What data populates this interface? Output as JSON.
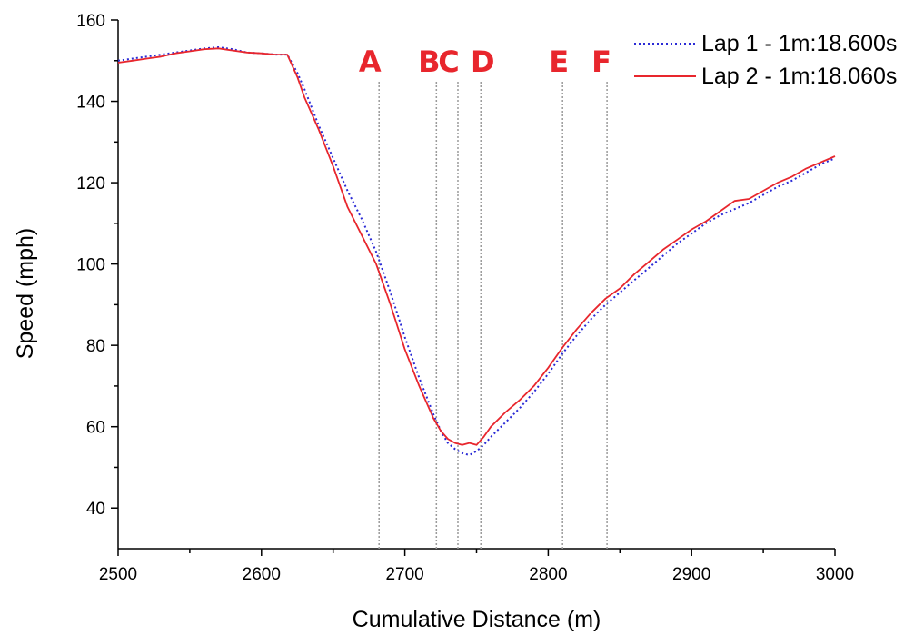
{
  "chart_data": {
    "type": "line",
    "xlabel": "Cumulative Distance (m)",
    "ylabel": "Speed (mph)",
    "xlim": [
      2500,
      3000
    ],
    "ylim": [
      30,
      160
    ],
    "x_ticks": [
      2500,
      2600,
      2700,
      2800,
      2900,
      3000
    ],
    "y_ticks": [
      40,
      60,
      80,
      100,
      120,
      140,
      160
    ],
    "grid": false,
    "legend_position": "top-right",
    "series": [
      {
        "name": "Lap 1 - 1m:18.600s",
        "color": "#2a2ad6",
        "style": "dotted",
        "x": [
          2500,
          2510,
          2520,
          2530,
          2540,
          2550,
          2560,
          2570,
          2580,
          2590,
          2600,
          2610,
          2618,
          2625,
          2630,
          2640,
          2650,
          2660,
          2670,
          2680,
          2690,
          2700,
          2710,
          2720,
          2725,
          2730,
          2735,
          2740,
          2745,
          2750,
          2755,
          2760,
          2770,
          2780,
          2790,
          2800,
          2810,
          2820,
          2830,
          2840,
          2850,
          2860,
          2870,
          2880,
          2890,
          2900,
          2910,
          2920,
          2930,
          2940,
          2950,
          2960,
          2970,
          2980,
          2990,
          3000
        ],
        "y": [
          150,
          150.5,
          151,
          151.5,
          152,
          152.5,
          153,
          153.3,
          152.8,
          152,
          151.8,
          151.5,
          151.5,
          147,
          143,
          134,
          126,
          118,
          111,
          103,
          93,
          82,
          72,
          63,
          59,
          56,
          54.5,
          53.5,
          53,
          54,
          55.5,
          57.5,
          61,
          64.5,
          68.5,
          73,
          78,
          82.5,
          86.5,
          90,
          93,
          96,
          99,
          102,
          105,
          107.5,
          110,
          112,
          113.5,
          115,
          117,
          119,
          120.5,
          122.5,
          124.5,
          126
        ]
      },
      {
        "name": "Lap 2 - 1m:18.060s",
        "color": "#e8262d",
        "style": "solid",
        "x": [
          2500,
          2510,
          2520,
          2530,
          2540,
          2550,
          2560,
          2570,
          2580,
          2590,
          2600,
          2610,
          2618,
          2625,
          2630,
          2640,
          2650,
          2660,
          2670,
          2680,
          2690,
          2700,
          2710,
          2720,
          2725,
          2730,
          2735,
          2740,
          2745,
          2750,
          2755,
          2760,
          2770,
          2780,
          2790,
          2800,
          2810,
          2820,
          2830,
          2840,
          2850,
          2860,
          2870,
          2880,
          2890,
          2900,
          2910,
          2920,
          2930,
          2940,
          2950,
          2960,
          2970,
          2980,
          2990,
          3000
        ],
        "y": [
          149.5,
          150,
          150.5,
          151,
          151.8,
          152.3,
          152.8,
          153,
          152.5,
          152,
          151.8,
          151.5,
          151.5,
          146,
          141,
          133,
          124,
          114,
          107,
          100,
          90,
          79,
          70,
          62,
          59,
          57,
          56,
          55.5,
          56,
          55.5,
          57.5,
          60,
          63.5,
          66.5,
          70,
          74.5,
          79.5,
          84,
          88,
          91.5,
          94,
          97.5,
          100.5,
          103.5,
          106,
          108.5,
          110.5,
          113,
          115.5,
          116,
          118,
          120,
          121.5,
          123.5,
          125,
          126.5
        ]
      }
    ],
    "markers": [
      {
        "label": "A",
        "x": 2682
      },
      {
        "label": "B",
        "x": 2722
      },
      {
        "label": "C",
        "x": 2737
      },
      {
        "label": "D",
        "x": 2753
      },
      {
        "label": "E",
        "x": 2810
      },
      {
        "label": "F",
        "x": 2841
      }
    ]
  }
}
